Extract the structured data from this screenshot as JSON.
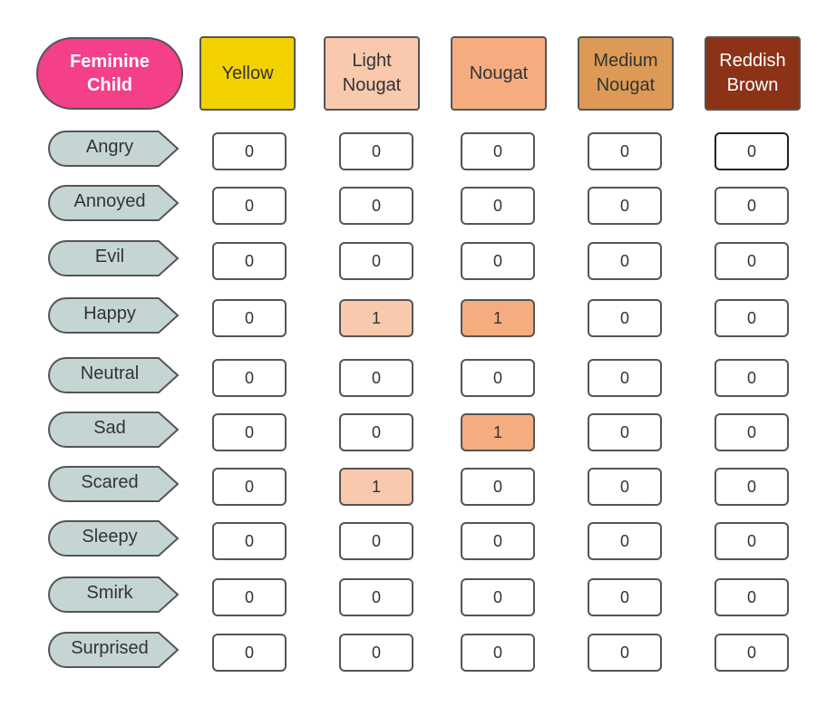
{
  "corner_label": "Feminine\nChild",
  "columns": [
    {
      "label": "Yellow",
      "color": "#f2d300"
    },
    {
      "label": "Light\nNougat",
      "color": "#f8c9ad"
    },
    {
      "label": "Nougat",
      "color": "#f5ad80"
    },
    {
      "label": "Medium\nNougat",
      "color": "#dd9a56"
    },
    {
      "label": "Reddish\nBrown",
      "color": "#8b3217"
    }
  ],
  "rows": [
    {
      "label": "Angry",
      "values": [
        "0",
        "0",
        "0",
        "0",
        "0"
      ]
    },
    {
      "label": "Annoyed",
      "values": [
        "0",
        "0",
        "0",
        "0",
        "0"
      ]
    },
    {
      "label": "Evil",
      "values": [
        "0",
        "0",
        "0",
        "0",
        "0"
      ]
    },
    {
      "label": "Happy",
      "values": [
        "0",
        "1",
        "1",
        "0",
        "0"
      ]
    },
    {
      "label": "Neutral",
      "values": [
        "0",
        "0",
        "0",
        "0",
        "0"
      ]
    },
    {
      "label": "Sad",
      "values": [
        "0",
        "0",
        "1",
        "0",
        "0"
      ]
    },
    {
      "label": "Scared",
      "values": [
        "0",
        "1",
        "0",
        "0",
        "0"
      ]
    },
    {
      "label": "Sleepy",
      "values": [
        "0",
        "0",
        "0",
        "0",
        "0"
      ]
    },
    {
      "label": "Smirk",
      "values": [
        "0",
        "0",
        "0",
        "0",
        "0"
      ]
    },
    {
      "label": "Surprised",
      "values": [
        "0",
        "0",
        "0",
        "0",
        "0"
      ]
    }
  ],
  "colors": {
    "corner_fill": "#f43f8a",
    "label_fill": "#c5d5d4",
    "stroke": "#555555",
    "light_nougat_highlight": "#f8c9ad",
    "nougat_highlight": "#f5ad80"
  }
}
